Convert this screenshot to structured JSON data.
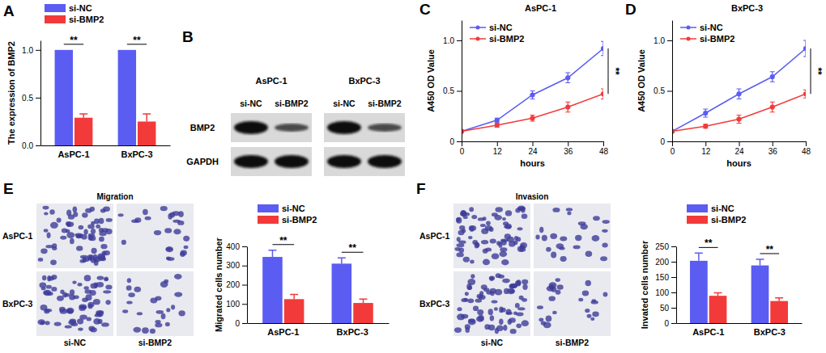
{
  "chart_data": [
    {
      "type": "bar",
      "panel": "A",
      "y_label": "The expression of BMP2",
      "categories": [
        "AsPC-1",
        "BxPC-3"
      ],
      "series": [
        {
          "name": "si-NC",
          "color": "#5b5cf2",
          "values": [
            1.0,
            1.0
          ]
        },
        {
          "name": "si-BMP2",
          "color": "#f23a3a",
          "values": [
            0.29,
            0.25
          ],
          "errors": [
            0.04,
            0.08
          ]
        }
      ],
      "ylim": [
        0,
        1.1
      ],
      "yticks": [
        {
          "value": 0,
          "label": "0.0"
        },
        {
          "value": 0.5,
          "label": "0.5"
        },
        {
          "value": 1,
          "label": "1.0"
        }
      ],
      "legend": "top-left",
      "annotations": [
        "**",
        "**"
      ]
    },
    {
      "type": "blot",
      "panel": "B",
      "cell_lines": [
        "AsPC-1",
        "BxPC-3"
      ],
      "lanes": [
        "si-NC",
        "si-BMP2"
      ],
      "proteins": [
        "BMP2",
        "GAPDH"
      ]
    },
    {
      "type": "line",
      "panel": "C",
      "title": "AsPC-1",
      "x_label": "hours",
      "y_label": "A450 OD Value",
      "x": [
        0,
        12,
        24,
        36,
        48
      ],
      "series": [
        {
          "name": "si-NC",
          "color": "#5b5cf2",
          "values": [
            0.1,
            0.21,
            0.46,
            0.63,
            0.92
          ],
          "errors": [
            0.01,
            0.02,
            0.04,
            0.05,
            0.07
          ]
        },
        {
          "name": "si-BMP2",
          "color": "#f23a3a",
          "values": [
            0.1,
            0.16,
            0.23,
            0.34,
            0.47
          ],
          "errors": [
            0.01,
            0.02,
            0.03,
            0.05,
            0.05
          ]
        }
      ],
      "xlim": [
        0,
        48
      ],
      "xticks": [
        0,
        12,
        24,
        36,
        48
      ],
      "ylim": [
        0,
        1.2
      ],
      "yticks": [
        0,
        0.5,
        {
          "value": 1,
          "label": "1.0"
        }
      ],
      "legend": "top-left",
      "marker": "circle",
      "annotations": [
        "**"
      ]
    },
    {
      "type": "line",
      "panel": "D",
      "title": "BxPC-3",
      "x_label": "hours",
      "y_label": "A450 OD Value",
      "x": [
        0,
        12,
        24,
        36,
        48
      ],
      "series": [
        {
          "name": "si-NC",
          "color": "#5b5cf2",
          "values": [
            0.1,
            0.28,
            0.47,
            0.64,
            0.92
          ],
          "errors": [
            0.01,
            0.04,
            0.05,
            0.05,
            0.08
          ]
        },
        {
          "name": "si-BMP2",
          "color": "#f23a3a",
          "values": [
            0.1,
            0.15,
            0.22,
            0.34,
            0.47
          ],
          "errors": [
            0.01,
            0.02,
            0.04,
            0.05,
            0.04
          ]
        }
      ],
      "xlim": [
        0,
        48
      ],
      "xticks": [
        0,
        12,
        24,
        36,
        48
      ],
      "ylim": [
        0,
        1.2
      ],
      "yticks": [
        0,
        0.5,
        {
          "value": 1,
          "label": "1.0"
        }
      ],
      "legend": "top-left",
      "marker": "circle",
      "annotations": [
        "**"
      ]
    },
    {
      "type": "bar",
      "panel": "E",
      "y_label": "Migrated cells number",
      "images": {
        "title": "Migration",
        "rows": [
          "AsPC-1",
          "BxPC-3"
        ],
        "columns": [
          "si-NC",
          "si-BMP2"
        ]
      },
      "categories": [
        "AsPC-1",
        "BxPC-3"
      ],
      "series": [
        {
          "name": "si-NC",
          "color": "#5b5cf2",
          "values": [
            345,
            310
          ],
          "errors": [
            35,
            30
          ]
        },
        {
          "name": "si-BMP2",
          "color": "#f23a3a",
          "values": [
            125,
            105
          ],
          "errors": [
            25,
            20
          ]
        }
      ],
      "ylim": [
        0,
        400
      ],
      "yticks": [
        0,
        100,
        200,
        300,
        400
      ],
      "legend": "top-left",
      "annotations": [
        "**",
        "**"
      ]
    },
    {
      "type": "bar",
      "panel": "F",
      "y_label": "Invated cells number",
      "images": {
        "title": "Invasion",
        "rows": [
          "AsPC-1",
          "BxPC-3"
        ],
        "columns": [
          "si-NC",
          "si-BMP2"
        ]
      },
      "categories": [
        "AsPC-1",
        "BxPC-3"
      ],
      "series": [
        {
          "name": "si-NC",
          "color": "#5b5cf2",
          "values": [
            203,
            188
          ],
          "errors": [
            25,
            20
          ]
        },
        {
          "name": "si-BMP2",
          "color": "#f23a3a",
          "values": [
            89,
            72
          ],
          "errors": [
            10,
            10
          ]
        }
      ],
      "ylim": [
        0,
        250
      ],
      "yticks": [
        0,
        50,
        100,
        150,
        200,
        250
      ],
      "legend": "top-left",
      "annotations": [
        "**",
        "**"
      ]
    }
  ]
}
